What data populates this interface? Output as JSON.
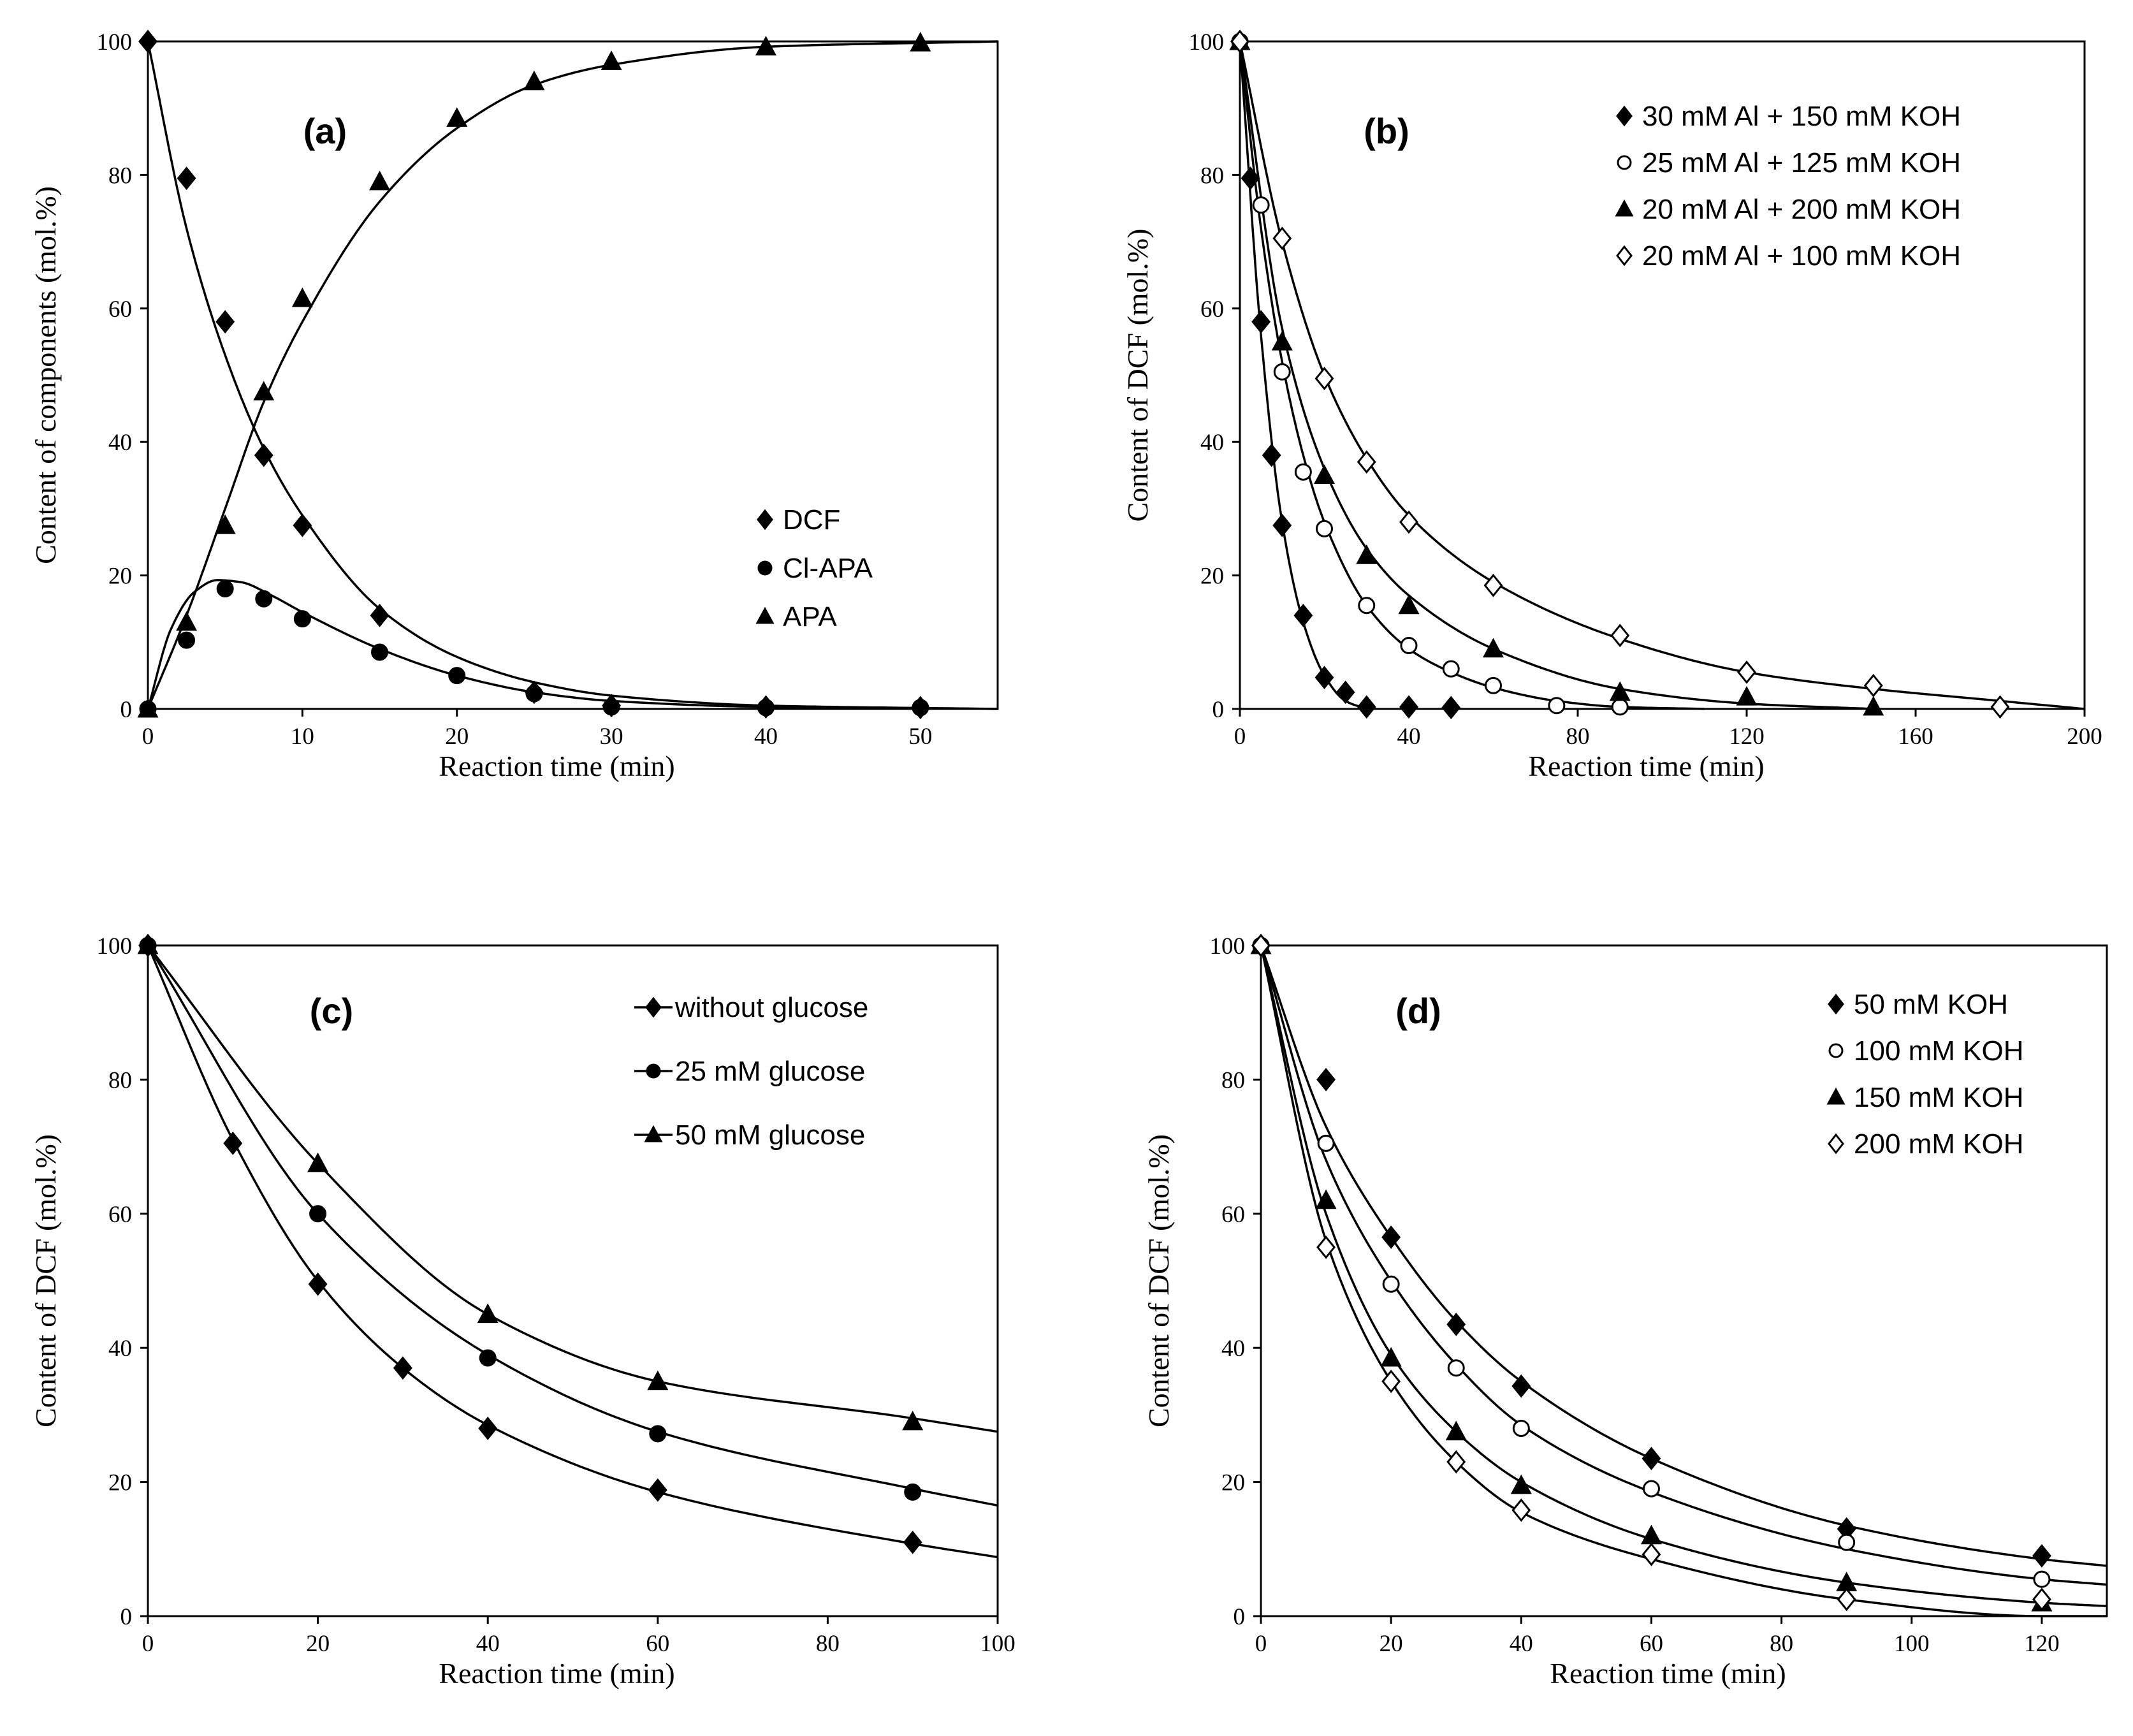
{
  "chart_data": [
    {
      "id": "a",
      "type": "scatter",
      "panel_label": "(a)",
      "xlabel": "Reaction time (min)",
      "ylabel": "Content of components (mol.%)",
      "xlim": [
        0,
        55
      ],
      "ylim": [
        0,
        100
      ],
      "xticks": [
        0,
        10,
        20,
        30,
        40,
        50
      ],
      "yticks": [
        0,
        20,
        40,
        60,
        80,
        100
      ],
      "legend_position": "middle-right",
      "legend_has_line": false,
      "series": [
        {
          "name": "DCF",
          "marker": "diamond",
          "filled": true,
          "x": [
            0,
            2.5,
            5,
            7.5,
            10,
            15,
            25,
            30,
            40,
            50
          ],
          "y": [
            100,
            79.5,
            58,
            38,
            27.5,
            14,
            2.5,
            0.5,
            0.3,
            0.2
          ]
        },
        {
          "name": "Cl-APA",
          "marker": "circle",
          "filled": true,
          "x": [
            0,
            2.5,
            5,
            7.5,
            10,
            15,
            20,
            25,
            30,
            40,
            50
          ],
          "y": [
            0,
            10.3,
            18,
            16.5,
            13.5,
            8.5,
            5,
            2.3,
            0.3,
            0.2,
            0.2
          ]
        },
        {
          "name": "APA",
          "marker": "triangle",
          "filled": true,
          "x": [
            0,
            2.5,
            5,
            7.5,
            10,
            15,
            20,
            25,
            30,
            40,
            50
          ],
          "y": [
            0,
            13,
            27.5,
            47.5,
            61.5,
            79,
            88.5,
            94,
            97,
            99.2,
            99.8
          ]
        }
      ]
    },
    {
      "id": "b",
      "type": "scatter",
      "panel_label": "(b)",
      "xlabel": "Reaction time (min)",
      "ylabel": "Content of DCF (mol.%)",
      "xlim": [
        0,
        200
      ],
      "ylim": [
        0,
        100
      ],
      "xticks": [
        0,
        40,
        80,
        120,
        160,
        200
      ],
      "yticks": [
        0,
        20,
        40,
        60,
        80,
        100
      ],
      "legend_position": "top-right",
      "legend_has_line": false,
      "series": [
        {
          "name": "30 mM Al + 150 mM KOH",
          "marker": "diamond",
          "filled": true,
          "x": [
            0,
            2.5,
            5,
            7.5,
            10,
            15,
            20,
            25,
            30,
            40,
            50
          ],
          "y": [
            100,
            79.5,
            58,
            38,
            27.5,
            14,
            4.7,
            2.5,
            0.3,
            0.3,
            0.2
          ]
        },
        {
          "name": "25 mM Al + 125 mM KOH",
          "marker": "circle",
          "filled": false,
          "x": [
            0,
            5,
            10,
            15,
            20,
            30,
            40,
            50,
            60,
            75,
            90
          ],
          "y": [
            100,
            75.5,
            50.5,
            35.5,
            27,
            15.5,
            9.5,
            6,
            3.5,
            0.5,
            0.3
          ]
        },
        {
          "name": "20 mM Al + 200 mM KOH",
          "marker": "triangle",
          "filled": true,
          "x": [
            0,
            10,
            20,
            30,
            40,
            60,
            90,
            120,
            150
          ],
          "y": [
            100,
            55,
            35,
            23,
            15.5,
            9,
            2.5,
            1.8,
            0.3
          ]
        },
        {
          "name": "20 mM Al + 100 mM KOH",
          "marker": "diamond",
          "filled": false,
          "x": [
            0,
            10,
            20,
            30,
            40,
            60,
            90,
            120,
            150,
            180
          ],
          "y": [
            100,
            70.5,
            49.5,
            37,
            28,
            18.5,
            11,
            5.5,
            3.5,
            0.3
          ]
        }
      ]
    },
    {
      "id": "c",
      "type": "line",
      "panel_label": "(c)",
      "xlabel": "Reaction time (min)",
      "ylabel": "Content of DCF  (mol.%)",
      "xlim": [
        0,
        100
      ],
      "ylim": [
        0,
        100
      ],
      "xticks": [
        0,
        20,
        40,
        60,
        80,
        100
      ],
      "yticks": [
        0,
        20,
        40,
        60,
        80,
        100
      ],
      "legend_position": "top-right",
      "legend_has_line": true,
      "series": [
        {
          "name": "without glucose",
          "marker": "diamond",
          "filled": true,
          "x": [
            0,
            10,
            20,
            30,
            40,
            60,
            90
          ],
          "y": [
            100,
            70.5,
            49.5,
            37,
            28,
            18.8,
            11
          ]
        },
        {
          "name": "25 mM glucose",
          "marker": "circle",
          "filled": true,
          "x": [
            0,
            20,
            40,
            60,
            90
          ],
          "y": [
            100,
            60,
            38.5,
            27.2,
            18.5
          ]
        },
        {
          "name": "50 mM glucose",
          "marker": "triangle",
          "filled": true,
          "x": [
            0,
            20,
            40,
            60,
            90
          ],
          "y": [
            100,
            67.5,
            45,
            35,
            29
          ]
        }
      ]
    },
    {
      "id": "d",
      "type": "scatter",
      "panel_label": "(d)",
      "xlabel": "Reaction time (min)",
      "ylabel": "Content of DCF (mol.%)",
      "xlim": [
        0,
        130
      ],
      "ylim": [
        0,
        100
      ],
      "xticks": [
        0,
        20,
        40,
        60,
        80,
        100,
        120
      ],
      "yticks": [
        0,
        20,
        40,
        60,
        80,
        100
      ],
      "legend_position": "top-right",
      "legend_has_line": false,
      "series": [
        {
          "name": "50 mM KOH",
          "marker": "diamond",
          "filled": true,
          "x": [
            0,
            10,
            20,
            30,
            40,
            60,
            90,
            120
          ],
          "y": [
            100,
            80,
            56.5,
            43.5,
            34.3,
            23.5,
            13,
            9
          ]
        },
        {
          "name": "100 mM KOH",
          "marker": "circle",
          "filled": false,
          "x": [
            0,
            10,
            20,
            30,
            40,
            60,
            90,
            120
          ],
          "y": [
            100,
            70.5,
            49.5,
            37,
            28,
            19,
            11,
            5.5
          ]
        },
        {
          "name": "150 mM KOH",
          "marker": "triangle",
          "filled": true,
          "x": [
            0,
            10,
            20,
            30,
            40,
            60,
            90,
            120
          ],
          "y": [
            100,
            62,
            38.5,
            27.5,
            19.5,
            12,
            5,
            2
          ]
        },
        {
          "name": "200 mM KOH",
          "marker": "diamond",
          "filled": false,
          "x": [
            0,
            10,
            20,
            30,
            40,
            60,
            90,
            120
          ],
          "y": [
            100,
            55,
            35,
            23,
            15.8,
            9.2,
            2.5,
            2.5
          ]
        }
      ]
    }
  ]
}
